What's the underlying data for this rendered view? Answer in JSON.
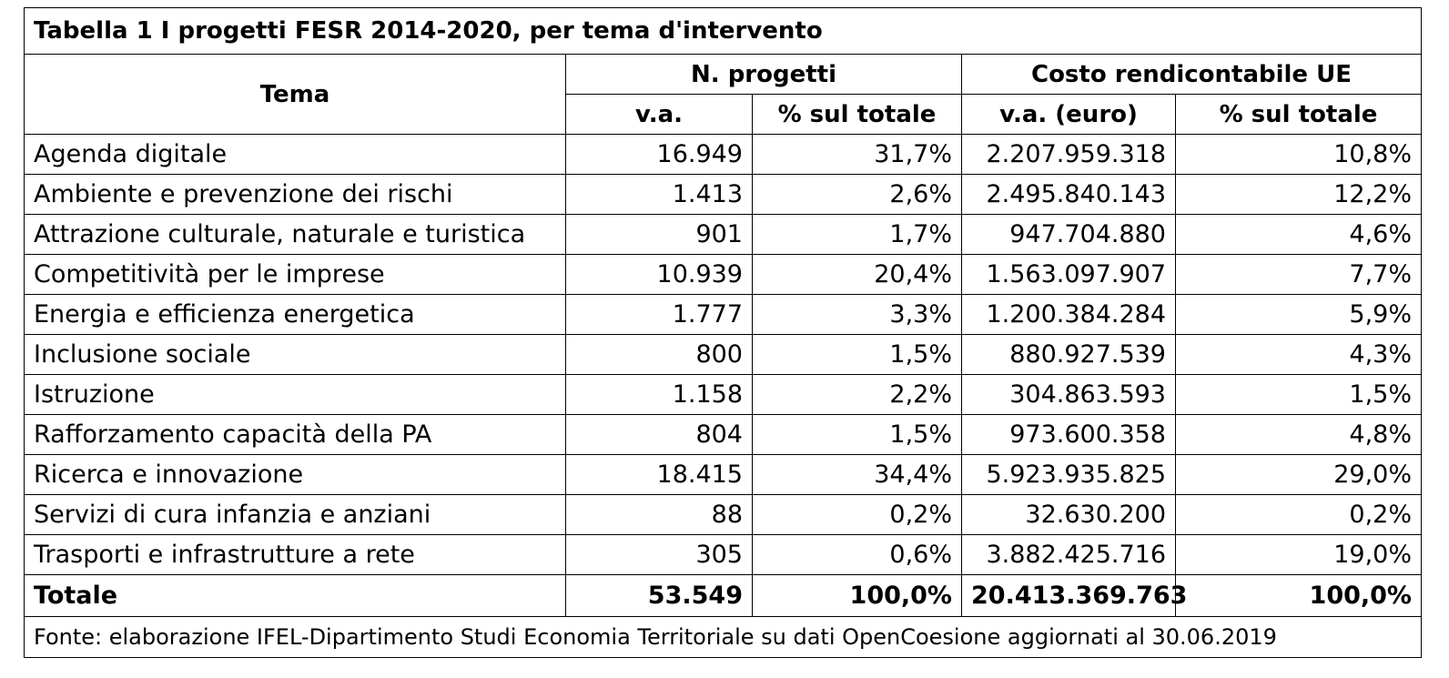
{
  "title": "Tabella 1 I progetti FESR 2014-2020, per tema d'intervento",
  "headers": {
    "tema": "Tema",
    "group_progetti": "N. progetti",
    "group_costo": "Costo rendicontabile UE",
    "va": "v.a.",
    "pct_progetti": "% sul totale",
    "va_euro": "v.a. (euro)",
    "pct_costo": "% sul totale"
  },
  "rows": [
    {
      "tema": "Agenda digitale",
      "progetti_va": "16.949",
      "progetti_pct": "31,7%",
      "costo_va": "2.207.959.318",
      "costo_pct": "10,8%"
    },
    {
      "tema": "Ambiente e prevenzione dei rischi",
      "progetti_va": "1.413",
      "progetti_pct": "2,6%",
      "costo_va": "2.495.840.143",
      "costo_pct": "12,2%"
    },
    {
      "tema": "Attrazione culturale, naturale e turistica",
      "progetti_va": "901",
      "progetti_pct": "1,7%",
      "costo_va": "947.704.880",
      "costo_pct": "4,6%"
    },
    {
      "tema": "Competitività per le imprese",
      "progetti_va": "10.939",
      "progetti_pct": "20,4%",
      "costo_va": "1.563.097.907",
      "costo_pct": "7,7%"
    },
    {
      "tema": "Energia e efficienza energetica",
      "progetti_va": "1.777",
      "progetti_pct": "3,3%",
      "costo_va": "1.200.384.284",
      "costo_pct": "5,9%"
    },
    {
      "tema": "Inclusione sociale",
      "progetti_va": "800",
      "progetti_pct": "1,5%",
      "costo_va": "880.927.539",
      "costo_pct": "4,3%"
    },
    {
      "tema": "Istruzione",
      "progetti_va": "1.158",
      "progetti_pct": "2,2%",
      "costo_va": "304.863.593",
      "costo_pct": "1,5%"
    },
    {
      "tema": "Rafforzamento capacità della PA",
      "progetti_va": "804",
      "progetti_pct": "1,5%",
      "costo_va": "973.600.358",
      "costo_pct": "4,8%"
    },
    {
      "tema": "Ricerca e innovazione",
      "progetti_va": "18.415",
      "progetti_pct": "34,4%",
      "costo_va": "5.923.935.825",
      "costo_pct": "29,0%"
    },
    {
      "tema": "Servizi di cura infanzia e anziani",
      "progetti_va": "88",
      "progetti_pct": "0,2%",
      "costo_va": "32.630.200",
      "costo_pct": "0,2%"
    },
    {
      "tema": "Trasporti e infrastrutture a rete",
      "progetti_va": "305",
      "progetti_pct": "0,6%",
      "costo_va": "3.882.425.716",
      "costo_pct": "19,0%"
    }
  ],
  "total": {
    "tema": "Totale",
    "progetti_va": "53.549",
    "progetti_pct": "100,0%",
    "costo_va": "20.413.369.763",
    "costo_pct": "100,0%"
  },
  "source": "Fonte: elaborazione IFEL-Dipartimento Studi Economia Territoriale su dati OpenCoesione aggiornati al 30.06.2019"
}
